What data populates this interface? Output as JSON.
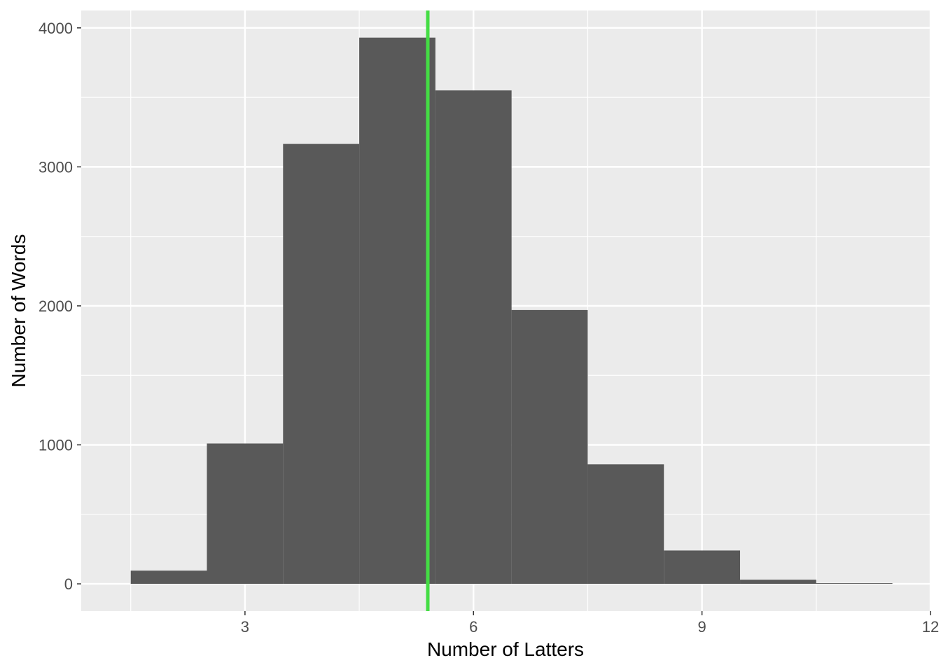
{
  "chart_data": {
    "type": "bar",
    "title": "",
    "xlabel": "Number of Latters",
    "ylabel": "Number of Words",
    "bins": [
      {
        "x": 2,
        "count": 95
      },
      {
        "x": 3,
        "count": 1010
      },
      {
        "x": 4,
        "count": 3165
      },
      {
        "x": 5,
        "count": 3930
      },
      {
        "x": 6,
        "count": 3550
      },
      {
        "x": 7,
        "count": 1970
      },
      {
        "x": 8,
        "count": 860
      },
      {
        "x": 9,
        "count": 240
      },
      {
        "x": 10,
        "count": 30
      },
      {
        "x": 11,
        "count": 5
      }
    ],
    "bin_width": 1,
    "mean_line": {
      "x": 5.4,
      "color": "#44DD44"
    },
    "xlim": [
      0.85,
      12
    ],
    "ylim": [
      -196,
      4125
    ],
    "x_ticks": [
      3,
      6,
      9,
      12
    ],
    "x_tick_labels": [
      "3",
      "6",
      "9",
      "12"
    ],
    "y_ticks": [
      0,
      1000,
      2000,
      3000,
      4000
    ],
    "y_tick_labels": [
      "0",
      "1000",
      "2000",
      "3000",
      "4000"
    ],
    "grid": true,
    "legend": "none",
    "colors": {
      "panel_background": "#EBEBEB",
      "grid": "#FFFFFF",
      "bar_fill": "#595959",
      "tick": "#333333"
    }
  }
}
